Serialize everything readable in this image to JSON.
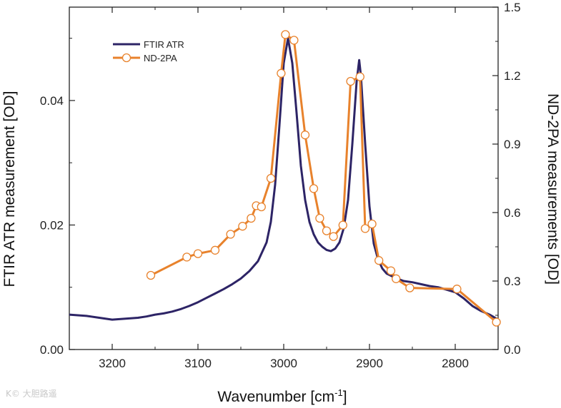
{
  "chart_data": {
    "type": "line",
    "x_label_main": "Wavenumber [cm",
    "x_label_sup": "-1",
    "x_label_end": "]",
    "y_left_label": "FTIR ATR measurement [OD]",
    "y_right_label": "ND-2PA measurements [OD]",
    "x_range": [
      3250,
      2750
    ],
    "x_ticks": [
      3200,
      3100,
      3000,
      2900,
      2800
    ],
    "y_left_range": [
      0.0,
      0.055
    ],
    "y_left_ticks": [
      0.0,
      0.02,
      0.04
    ],
    "y_left_tick_labels": [
      "0.00",
      "0.02",
      "0.04"
    ],
    "y_right_range": [
      0.0,
      1.5
    ],
    "y_right_ticks": [
      0.0,
      0.3,
      0.6,
      0.9,
      1.2,
      1.5
    ],
    "y_right_tick_labels": [
      "0.0",
      "0.3",
      "0.6",
      "0.9",
      "1.2",
      "1.5"
    ],
    "legend": [
      {
        "name": "FTIR ATR",
        "color": "#2d2466",
        "marker": "none"
      },
      {
        "name": "ND-2PA",
        "color": "#e8822c",
        "marker": "open-circle"
      }
    ],
    "series": [
      {
        "name": "FTIR ATR",
        "axis": "left",
        "color": "#2d2466",
        "x": [
          3250,
          3240,
          3230,
          3220,
          3210,
          3200,
          3190,
          3180,
          3170,
          3160,
          3150,
          3140,
          3130,
          3120,
          3110,
          3100,
          3090,
          3080,
          3070,
          3060,
          3050,
          3040,
          3030,
          3020,
          3015,
          3010,
          3005,
          3000,
          2995,
          2990,
          2985,
          2980,
          2975,
          2970,
          2965,
          2960,
          2955,
          2950,
          2945,
          2940,
          2935,
          2930,
          2925,
          2920,
          2915,
          2912,
          2910,
          2905,
          2900,
          2895,
          2890,
          2885,
          2880,
          2870,
          2860,
          2850,
          2840,
          2830,
          2820,
          2810,
          2800,
          2790,
          2780,
          2770,
          2760,
          2750
        ],
        "y": [
          0.0056,
          0.0055,
          0.0054,
          0.0052,
          0.005,
          0.0048,
          0.0049,
          0.005,
          0.0051,
          0.0053,
          0.0056,
          0.0058,
          0.0061,
          0.0065,
          0.007,
          0.0076,
          0.0083,
          0.009,
          0.0097,
          0.0105,
          0.0114,
          0.0126,
          0.0142,
          0.0172,
          0.0205,
          0.0265,
          0.036,
          0.046,
          0.05,
          0.046,
          0.038,
          0.0295,
          0.024,
          0.0205,
          0.0185,
          0.0172,
          0.0165,
          0.016,
          0.0158,
          0.0162,
          0.0172,
          0.0195,
          0.024,
          0.033,
          0.043,
          0.0465,
          0.044,
          0.033,
          0.023,
          0.017,
          0.0145,
          0.013,
          0.0122,
          0.0115,
          0.011,
          0.0108,
          0.0105,
          0.0102,
          0.01,
          0.0096,
          0.0092,
          0.0082,
          0.007,
          0.0062,
          0.0056,
          0.0048
        ]
      },
      {
        "name": "ND-2PA",
        "axis": "right",
        "color": "#e8822c",
        "x": [
          3155,
          3113,
          3100,
          3080,
          3062,
          3048,
          3038,
          3032,
          3026,
          3015,
          3003,
          2998,
          2988,
          2975,
          2965,
          2958,
          2950,
          2942,
          2931,
          2922,
          2911,
          2905,
          2897,
          2889,
          2875,
          2869,
          2853,
          2798,
          2752
        ],
        "y": [
          0.325,
          0.405,
          0.42,
          0.435,
          0.505,
          0.54,
          0.575,
          0.63,
          0.625,
          0.75,
          1.21,
          1.38,
          1.355,
          0.94,
          0.705,
          0.575,
          0.52,
          0.495,
          0.545,
          1.175,
          1.195,
          0.53,
          0.55,
          0.39,
          0.345,
          0.31,
          0.27,
          0.265,
          0.12
        ]
      }
    ]
  },
  "watermark": "K© 大胆路遥"
}
